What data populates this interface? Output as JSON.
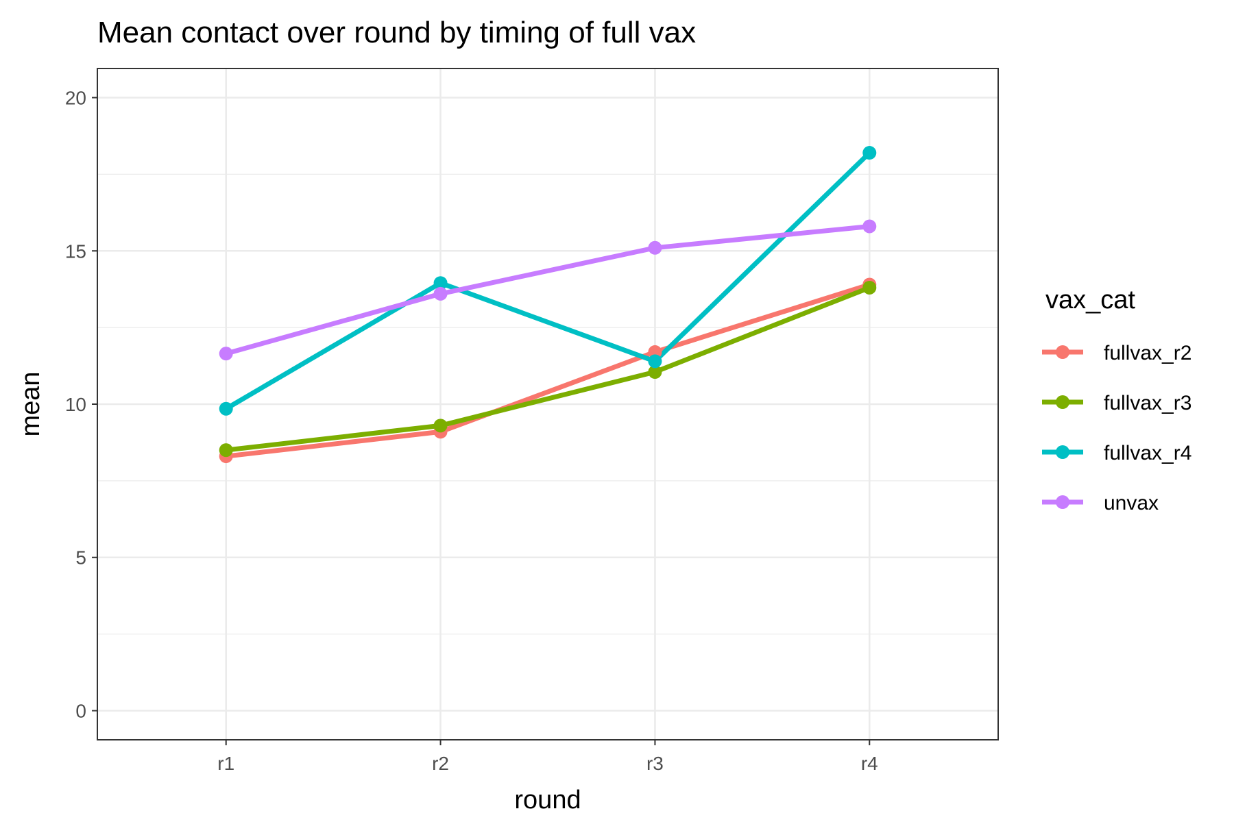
{
  "chart_data": {
    "type": "line",
    "title": "Mean contact over round by timing of full vax",
    "xlabel": "round",
    "ylabel": "mean",
    "categories": [
      "r1",
      "r2",
      "r3",
      "r4"
    ],
    "ylim": [
      -0.95,
      20.95
    ],
    "yticks": [
      0,
      5,
      10,
      15,
      20
    ],
    "grid": true,
    "legend": {
      "title": "vax_cat",
      "position": "right"
    },
    "series": [
      {
        "name": "fullvax_r2",
        "color": "#F8766D",
        "values": [
          8.3,
          9.1,
          11.7,
          13.9
        ]
      },
      {
        "name": "fullvax_r3",
        "color": "#7CAE00",
        "values": [
          8.5,
          9.3,
          11.05,
          13.8
        ]
      },
      {
        "name": "fullvax_r4",
        "color": "#00BFC4",
        "values": [
          9.85,
          13.95,
          11.4,
          18.2
        ]
      },
      {
        "name": "unvax",
        "color": "#C77CFF",
        "values": [
          11.65,
          13.6,
          15.1,
          15.8
        ]
      }
    ]
  }
}
